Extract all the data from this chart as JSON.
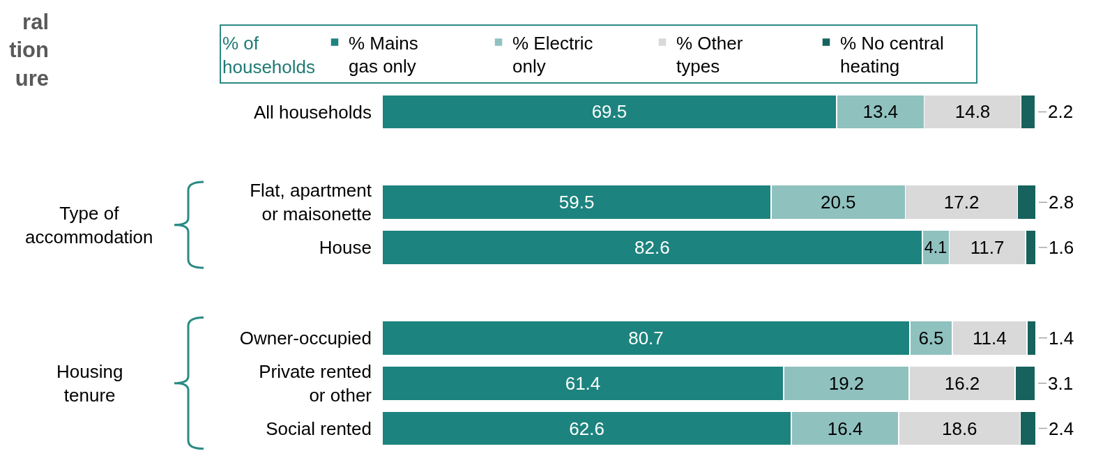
{
  "chart_data": {
    "type": "bar",
    "orientation": "horizontal",
    "stacked": true,
    "title": "ral\ntion\nure",
    "categories": [
      "All households",
      null,
      "Flat, apartment or maisonette",
      "House",
      null,
      "Owner-occupied",
      "Private rented or other",
      "Social rented"
    ],
    "series": [
      {
        "name": "% Mains gas only",
        "color": "#1d837e",
        "values": [
          69.5,
          null,
          59.5,
          82.6,
          null,
          80.7,
          61.4,
          62.6
        ]
      },
      {
        "name": "% Electric only",
        "color": "#8fc1bf",
        "values": [
          13.4,
          null,
          20.5,
          4.1,
          null,
          6.5,
          19.2,
          16.4
        ]
      },
      {
        "name": "% Other types",
        "color": "#d9d9d9",
        "values": [
          14.8,
          null,
          17.2,
          11.7,
          null,
          11.4,
          16.2,
          18.6
        ]
      },
      {
        "name": "% No central heating",
        "color": "#17625d",
        "values": [
          2.2,
          null,
          2.8,
          1.6,
          null,
          1.4,
          3.1,
          2.4
        ]
      }
    ],
    "xlim": [
      0,
      100
    ],
    "tick_labels": "y",
    "data_labels": true,
    "legend": "top",
    "legend_title": "% of households",
    "annotations": [
      "Type of accommodation",
      "Housing tenure"
    ]
  }
}
